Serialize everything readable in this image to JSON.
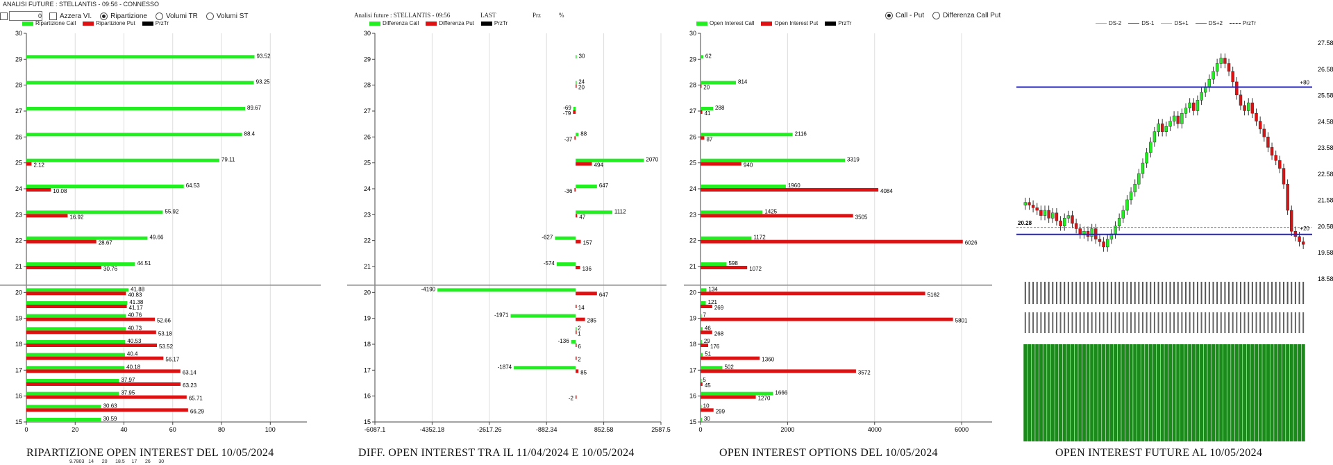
{
  "window_title": "ANALISI FUTURE : STELLANTIS - 09:56 - CONNESSO",
  "controls": {
    "spinner_value": "0",
    "azzera_label": "Azzera VI.",
    "ripartizione_label": "Ripartizione",
    "volumi_tr_label": "Volumi TR",
    "volumi_st_label": "Volumi ST"
  },
  "header2": {
    "title": "Analisi future : STELLANTIS - 09:56",
    "last": "LAST",
    "prz": "Prz",
    "pct": "%"
  },
  "radio_opts": {
    "call_put": "Call - Put",
    "diff_call_put": "Differenza Call Put"
  },
  "footer_ticks": "9.7803   14      20      18.5     17      26      30",
  "colors": {
    "green": "#22ee22",
    "red": "#dd1111",
    "blue": "#2222cc",
    "dkgreen": "#1a8a1a"
  },
  "chart_data": [
    {
      "type": "bar",
      "title": "RIPARTIZIONE OPEN INTEREST DEL 10/05/2024",
      "legend": [
        "Ripartizione Call",
        "Ripartizione Put",
        "PrzTr"
      ],
      "xlim": [
        0,
        115
      ],
      "xticks": [
        0,
        20,
        40,
        60,
        80,
        100
      ],
      "yticks": [
        15,
        16,
        17,
        18,
        19,
        20,
        21,
        22,
        23,
        24,
        25,
        26,
        27,
        28,
        29,
        30
      ],
      "rows": [
        {
          "y": 29,
          "call": 93.52,
          "put": null
        },
        {
          "y": 28,
          "call": 93.25,
          "put": null
        },
        {
          "y": 27,
          "call": 89.67,
          "put": null
        },
        {
          "y": 26,
          "call": 88.4,
          "put": null
        },
        {
          "y": 25,
          "call": 79.11,
          "put": 2.12
        },
        {
          "y": 24,
          "call": 64.53,
          "put": 10.08
        },
        {
          "y": 23,
          "call": 55.92,
          "put": 16.92
        },
        {
          "y": 22,
          "call": 49.66,
          "put": 28.67
        },
        {
          "y": 21,
          "call": 44.51,
          "put": 30.76
        },
        {
          "y": 20,
          "call": 41.88,
          "put": 40.83
        },
        {
          "y": 19.5,
          "call": 41.38,
          "put": 41.17
        },
        {
          "y": 19,
          "call": 40.76,
          "put": 52.66
        },
        {
          "y": 18.5,
          "call": 40.73,
          "put": 53.18
        },
        {
          "y": 18,
          "call": 40.53,
          "put": 53.52
        },
        {
          "y": 17.5,
          "call": 40.4,
          "put": 56.17
        },
        {
          "y": 17,
          "call": 40.18,
          "put": 63.14
        },
        {
          "y": 16.5,
          "call": 37.97,
          "put": 63.23
        },
        {
          "y": 16,
          "call": 37.95,
          "put": 65.71
        },
        {
          "y": 15.5,
          "call": 30.63,
          "put": 66.29
        },
        {
          "y": 15,
          "call": 30.59,
          "put": null
        }
      ],
      "pricetr": 20.28
    },
    {
      "type": "bar",
      "title": "DIFF. OPEN INTEREST TRA IL 11/04/2024 E 10/05/2024",
      "legend": [
        "Differenza Call",
        "Differenza Put",
        "PrzTr"
      ],
      "xlim": [
        -6087.1,
        2587.5
      ],
      "xticks": [
        -6087.1,
        -4352.18,
        -2617.26,
        -882.34,
        852.58,
        2587.5
      ],
      "yticks": [
        15,
        16,
        17,
        18,
        19,
        20,
        21,
        22,
        23,
        24,
        25,
        26,
        27,
        28,
        29,
        30
      ],
      "rows": [
        {
          "y": 29,
          "call": 30,
          "put": null
        },
        {
          "y": 28,
          "call": 24,
          "put": 20
        },
        {
          "y": 27,
          "call": -69,
          "put": -79
        },
        {
          "y": 26,
          "call": 88,
          "put": -37
        },
        {
          "y": 25,
          "call": 2070,
          "put": 494
        },
        {
          "y": 24,
          "call": 647,
          "put": -36
        },
        {
          "y": 23,
          "call": 1112,
          "put": 47
        },
        {
          "y": 22,
          "call": -627,
          "put": 157
        },
        {
          "y": 21,
          "call": -574,
          "put": 136
        },
        {
          "y": 20,
          "call": -4190,
          "put": 647
        },
        {
          "y": 19.5,
          "call": null,
          "put": 14
        },
        {
          "y": 19,
          "call": -1971,
          "put": 285
        },
        {
          "y": 18.5,
          "call": 2,
          "put": 1
        },
        {
          "y": 18,
          "call": -136,
          "put": 6
        },
        {
          "y": 17.5,
          "call": null,
          "put": 2
        },
        {
          "y": 17,
          "call": -1874,
          "put": 85
        },
        {
          "y": 16,
          "call": null,
          "put": -2
        }
      ],
      "pricetr": 20.28
    },
    {
      "type": "bar",
      "title": "OPEN INTEREST OPTIONS DEL 10/05/2024",
      "legend": [
        "Open Interest Call",
        "Open Interest Put",
        "PrzTr"
      ],
      "xlim": [
        0,
        6700
      ],
      "xticks": [
        0,
        2000,
        4000,
        6000
      ],
      "yticks": [
        15,
        16,
        17,
        18,
        19,
        20,
        21,
        22,
        23,
        24,
        25,
        26,
        27,
        28,
        29,
        30
      ],
      "rows": [
        {
          "y": 29,
          "call": 62,
          "put": null
        },
        {
          "y": 28,
          "call": 814,
          "put": 20
        },
        {
          "y": 27,
          "call": 288,
          "put": 41
        },
        {
          "y": 26,
          "call": 2116,
          "put": 87
        },
        {
          "y": 25,
          "call": 3319,
          "put": 940
        },
        {
          "y": 24,
          "call": 1960,
          "put": 4084
        },
        {
          "y": 23,
          "call": 1425,
          "put": 3505
        },
        {
          "y": 22,
          "call": 1172,
          "put": 6026
        },
        {
          "y": 21,
          "call": 598,
          "put": 1072
        },
        {
          "y": 20,
          "call": 134,
          "put": 5162
        },
        {
          "y": 19.5,
          "call": 121,
          "put": 269
        },
        {
          "y": 19,
          "call": 7,
          "put": 5801
        },
        {
          "y": 18.5,
          "call": 46,
          "put": 268
        },
        {
          "y": 18,
          "call": 29,
          "put": 176
        },
        {
          "y": 17.5,
          "call": 51,
          "put": 1360
        },
        {
          "y": 17,
          "call": 502,
          "put": 3572
        },
        {
          "y": 16.5,
          "call": 5,
          "put": 45
        },
        {
          "y": 16,
          "call": 1666,
          "put": 1270
        },
        {
          "y": 15.5,
          "call": 10,
          "put": 299
        },
        {
          "y": 15,
          "call": 30,
          "put": null
        }
      ],
      "pricetr": 20.28
    },
    {
      "type": "candlestick",
      "title": "OPEN INTEREST FUTURE AL 10/05/2024",
      "legend": [
        "DS-2",
        "DS-1",
        "DS+1",
        "DS+2",
        "PrzTr"
      ],
      "ylim": [
        18.58,
        27.58
      ],
      "yticks": [
        18.58,
        19.58,
        20.58,
        21.58,
        22.58,
        23.58,
        24.58,
        25.58,
        26.58,
        27.58
      ],
      "hlines": [
        25.9,
        20.28
      ],
      "labels": {
        "upper": "+80",
        "price": "20.28",
        "right": "+20"
      },
      "closes": [
        21.5,
        21.4,
        21.3,
        21.2,
        21.0,
        21.2,
        20.9,
        21.1,
        20.8,
        20.6,
        20.9,
        21.0,
        20.7,
        20.5,
        20.3,
        20.4,
        20.2,
        20.5,
        20.1,
        20.0,
        19.8,
        20.1,
        20.3,
        20.6,
        20.9,
        21.2,
        21.6,
        21.9,
        22.2,
        22.6,
        23.0,
        23.4,
        23.8,
        24.2,
        24.5,
        24.2,
        24.4,
        24.6,
        24.8,
        24.5,
        24.9,
        25.1,
        25.3,
        25.0,
        25.4,
        25.7,
        25.9,
        26.2,
        26.5,
        26.8,
        27.0,
        26.8,
        26.5,
        26.1,
        25.6,
        25.2,
        25.0,
        25.3,
        24.9,
        24.6,
        24.3,
        24.0,
        23.6,
        23.3,
        23.1,
        22.8,
        22.2,
        21.2,
        20.4,
        20.2,
        20.0,
        19.9
      ]
    }
  ]
}
